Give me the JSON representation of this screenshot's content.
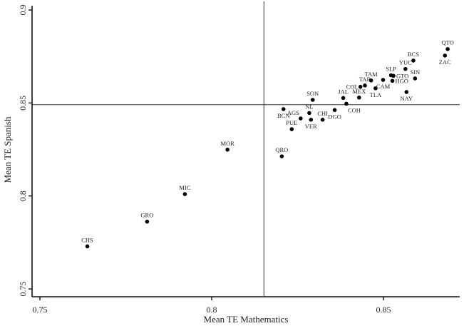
{
  "chart_data": {
    "type": "scatter",
    "title": "",
    "xlabel": "Mean TE Mathematics",
    "ylabel": "Mean TE Spanish",
    "xlim": [
      0.7478,
      0.872
    ],
    "ylim": [
      0.7458,
      0.9028
    ],
    "xticks": [
      0.75,
      0.8,
      0.85
    ],
    "xtick_labels": [
      "0.75",
      "0.8",
      "0.85"
    ],
    "yticks": [
      0.75,
      0.8,
      0.85,
      0.9
    ],
    "ytick_labels": [
      "0.75",
      "0.8",
      "0.85",
      "0.9"
    ],
    "grid": false,
    "reference_lines": {
      "vertical_x": 0.8152,
      "horizontal_y": 0.8491
    },
    "points": [
      {
        "label": "CHS",
        "x": 0.7638,
        "y": 0.7729,
        "pos": "above"
      },
      {
        "label": "GRO",
        "x": 0.7812,
        "y": 0.7862,
        "pos": "above"
      },
      {
        "label": "MIC",
        "x": 0.7922,
        "y": 0.801,
        "pos": "above"
      },
      {
        "label": "MOR",
        "x": 0.8046,
        "y": 0.8249,
        "pos": "above"
      },
      {
        "label": "QRO",
        "x": 0.8204,
        "y": 0.8213,
        "pos": "above"
      },
      {
        "label": "PUE",
        "x": 0.8233,
        "y": 0.8359,
        "pos": "above"
      },
      {
        "label": "BCN",
        "x": 0.8209,
        "y": 0.8467,
        "pos": "below"
      },
      {
        "label": "AGS",
        "x": 0.8259,
        "y": 0.8417,
        "pos": "above-left"
      },
      {
        "label": "NL",
        "x": 0.8284,
        "y": 0.8446,
        "pos": "above"
      },
      {
        "label": "VER",
        "x": 0.8289,
        "y": 0.841,
        "pos": "below"
      },
      {
        "label": "CHI",
        "x": 0.8323,
        "y": 0.841,
        "pos": "above"
      },
      {
        "label": "DGO",
        "x": 0.8358,
        "y": 0.8462,
        "pos": "below"
      },
      {
        "label": "COH",
        "x": 0.8392,
        "y": 0.8496,
        "pos": "below-right"
      },
      {
        "label": "SON",
        "x": 0.8294,
        "y": 0.8517,
        "pos": "above"
      },
      {
        "label": "JAL",
        "x": 0.8383,
        "y": 0.8527,
        "pos": "above"
      },
      {
        "label": "MEX",
        "x": 0.8429,
        "y": 0.8529,
        "pos": "above"
      },
      {
        "label": "COL",
        "x": 0.8433,
        "y": 0.8587,
        "pos": "left"
      },
      {
        "label": "TAB",
        "x": 0.8446,
        "y": 0.8594,
        "pos": "above"
      },
      {
        "label": "TLA",
        "x": 0.8477,
        "y": 0.8579,
        "pos": "below"
      },
      {
        "label": "TAM",
        "x": 0.8464,
        "y": 0.8621,
        "pos": "above"
      },
      {
        "label": "CAM",
        "x": 0.8499,
        "y": 0.8624,
        "pos": "below"
      },
      {
        "label": "SLP",
        "x": 0.8522,
        "y": 0.8649,
        "pos": "above"
      },
      {
        "label": "GTO",
        "x": 0.8529,
        "y": 0.8646,
        "pos": "right"
      },
      {
        "label": "HGO",
        "x": 0.8526,
        "y": 0.8619,
        "pos": "right"
      },
      {
        "label": "SIN",
        "x": 0.8592,
        "y": 0.8632,
        "pos": "above"
      },
      {
        "label": "NAY",
        "x": 0.8567,
        "y": 0.8559,
        "pos": "below"
      },
      {
        "label": "YUC",
        "x": 0.8564,
        "y": 0.8683,
        "pos": "above"
      },
      {
        "label": "BCS",
        "x": 0.8587,
        "y": 0.8728,
        "pos": "above"
      },
      {
        "label": "ZAC",
        "x": 0.8679,
        "y": 0.8755,
        "pos": "below"
      },
      {
        "label": "QTO",
        "x": 0.8687,
        "y": 0.879,
        "pos": "above"
      }
    ]
  }
}
